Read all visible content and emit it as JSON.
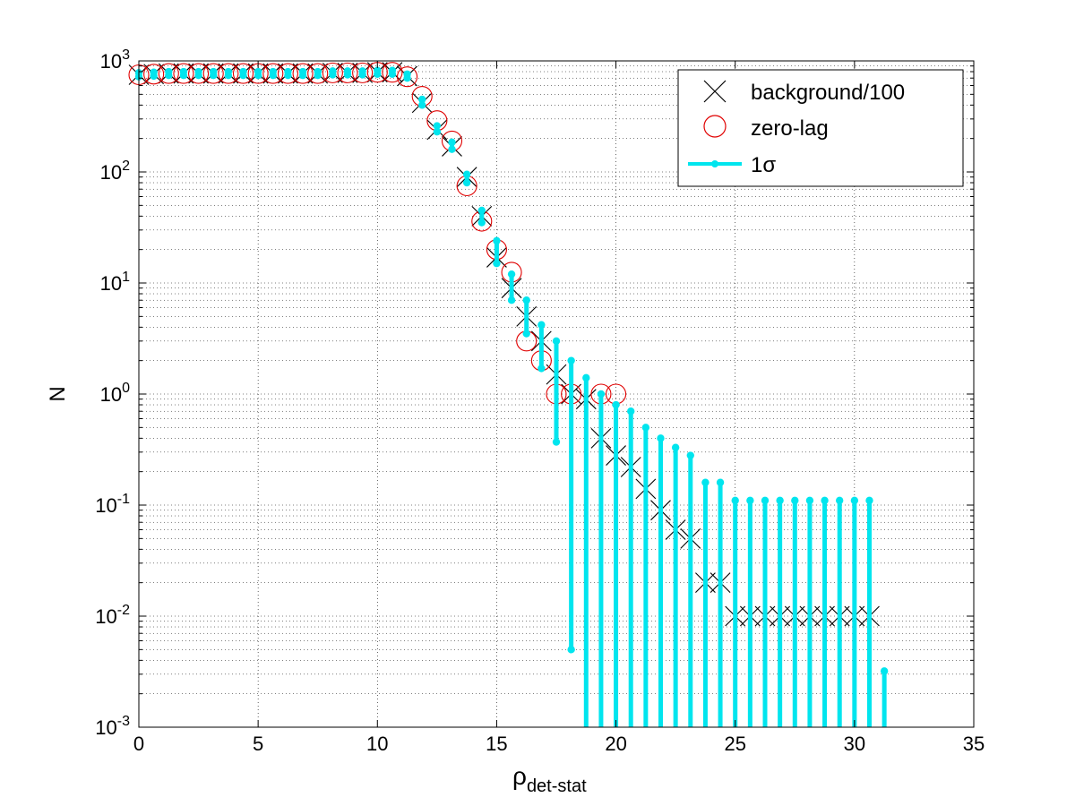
{
  "chart_data": {
    "type": "scatter",
    "xlabel": "ρ",
    "xlabel_sub": "det-stat",
    "ylabel": "N",
    "xlim": [
      0,
      35
    ],
    "ylim": [
      0.001,
      1000
    ],
    "yscale": "log",
    "grid": true,
    "x_ticks": [
      0,
      5,
      10,
      15,
      20,
      25,
      30,
      35
    ],
    "y_ticks": [
      {
        "value": 0.001,
        "base": "10",
        "exp": "-3"
      },
      {
        "value": 0.01,
        "base": "10",
        "exp": "-2"
      },
      {
        "value": 0.1,
        "base": "10",
        "exp": "-1"
      },
      {
        "value": 1,
        "base": "10",
        "exp": "0"
      },
      {
        "value": 10,
        "base": "10",
        "exp": "1"
      },
      {
        "value": 100,
        "base": "10",
        "exp": "2"
      },
      {
        "value": 1000,
        "base": "10",
        "exp": "3"
      }
    ],
    "legend_position": "top-right",
    "colors": {
      "background": "#000000",
      "zero_lag": "#e00000",
      "sigma": "#00e5ee"
    },
    "series": [
      {
        "name": "background/100",
        "marker": "x",
        "points": [
          [
            0,
            750
          ],
          [
            0.625,
            760
          ],
          [
            1.25,
            770
          ],
          [
            1.875,
            770
          ],
          [
            2.5,
            770
          ],
          [
            3.125,
            770
          ],
          [
            3.75,
            770
          ],
          [
            4.375,
            770
          ],
          [
            5,
            770
          ],
          [
            5.625,
            770
          ],
          [
            6.25,
            770
          ],
          [
            6.875,
            770
          ],
          [
            7.5,
            770
          ],
          [
            8.125,
            780
          ],
          [
            8.75,
            780
          ],
          [
            9.375,
            780
          ],
          [
            10,
            790
          ],
          [
            10.625,
            790
          ],
          [
            11.25,
            730
          ],
          [
            11.875,
            420
          ],
          [
            12.5,
            240
          ],
          [
            13.125,
            170
          ],
          [
            13.75,
            90
          ],
          [
            14.375,
            40
          ],
          [
            15,
            17
          ],
          [
            15.625,
            9
          ],
          [
            16.25,
            5
          ],
          [
            16.875,
            3
          ],
          [
            17.5,
            1.5
          ],
          [
            18.125,
            1
          ],
          [
            18.75,
            0.9
          ],
          [
            19.375,
            0.4
          ],
          [
            20,
            0.28
          ],
          [
            20.625,
            0.22
          ],
          [
            21.25,
            0.14
          ],
          [
            21.875,
            0.09
          ],
          [
            22.5,
            0.06
          ],
          [
            23.125,
            0.05
          ],
          [
            23.75,
            0.02
          ],
          [
            24.375,
            0.02
          ],
          [
            25,
            0.01
          ],
          [
            25.625,
            0.01
          ],
          [
            26.25,
            0.01
          ],
          [
            26.875,
            0.01
          ],
          [
            27.5,
            0.01
          ],
          [
            28.125,
            0.01
          ],
          [
            28.75,
            0.01
          ],
          [
            29.375,
            0.01
          ],
          [
            30,
            0.01
          ],
          [
            30.625,
            0.01
          ]
        ]
      },
      {
        "name": "zero-lag",
        "marker": "o",
        "points": [
          [
            0,
            750
          ],
          [
            0.625,
            760
          ],
          [
            1.25,
            770
          ],
          [
            1.875,
            770
          ],
          [
            2.5,
            770
          ],
          [
            3.125,
            770
          ],
          [
            3.75,
            770
          ],
          [
            4.375,
            770
          ],
          [
            5,
            770
          ],
          [
            5.625,
            770
          ],
          [
            6.25,
            770
          ],
          [
            6.875,
            770
          ],
          [
            7.5,
            770
          ],
          [
            8.125,
            780
          ],
          [
            8.75,
            780
          ],
          [
            9.375,
            780
          ],
          [
            10,
            790
          ],
          [
            10.625,
            790
          ],
          [
            11.25,
            720
          ],
          [
            11.875,
            480
          ],
          [
            12.5,
            290
          ],
          [
            13.125,
            190
          ],
          [
            13.75,
            75
          ],
          [
            14.375,
            36
          ],
          [
            15,
            20
          ],
          [
            15.625,
            12.5
          ],
          [
            16.25,
            3
          ],
          [
            16.875,
            2
          ],
          [
            17.5,
            1
          ],
          [
            18.125,
            1
          ],
          [
            19.375,
            1
          ],
          [
            20,
            1
          ]
        ]
      },
      {
        "name": "1σ",
        "marker": "errorbar",
        "bars": [
          [
            0,
            720,
            780
          ],
          [
            0.625,
            730,
            790
          ],
          [
            1.25,
            740,
            800
          ],
          [
            1.875,
            740,
            800
          ],
          [
            2.5,
            740,
            800
          ],
          [
            3.125,
            740,
            800
          ],
          [
            3.75,
            740,
            800
          ],
          [
            4.375,
            740,
            800
          ],
          [
            5,
            740,
            800
          ],
          [
            5.625,
            740,
            800
          ],
          [
            6.25,
            740,
            800
          ],
          [
            6.875,
            740,
            800
          ],
          [
            7.5,
            740,
            800
          ],
          [
            8.125,
            750,
            810
          ],
          [
            8.75,
            750,
            810
          ],
          [
            9.375,
            750,
            810
          ],
          [
            10,
            760,
            820
          ],
          [
            10.625,
            760,
            820
          ],
          [
            11.25,
            700,
            760
          ],
          [
            11.875,
            400,
            450
          ],
          [
            12.5,
            230,
            260
          ],
          [
            13.125,
            160,
            185
          ],
          [
            13.75,
            80,
            95
          ],
          [
            14.375,
            35,
            45
          ],
          [
            15,
            15,
            24
          ],
          [
            15.625,
            7,
            12
          ],
          [
            16.25,
            3.5,
            7
          ],
          [
            16.875,
            1.7,
            4.2
          ],
          [
            17.5,
            0.37,
            3
          ],
          [
            18.125,
            0.005,
            2
          ],
          [
            18.75,
            0.001,
            1.4
          ],
          [
            19.375,
            0.001,
            1
          ],
          [
            20,
            0.001,
            0.8
          ],
          [
            20.625,
            0.001,
            0.7
          ],
          [
            21.25,
            0.001,
            0.5
          ],
          [
            21.875,
            0.001,
            0.4
          ],
          [
            22.5,
            0.001,
            0.33
          ],
          [
            23.125,
            0.001,
            0.28
          ],
          [
            23.75,
            0.001,
            0.16
          ],
          [
            24.375,
            0.001,
            0.16
          ],
          [
            25,
            0.001,
            0.11
          ],
          [
            25.625,
            0.001,
            0.11
          ],
          [
            26.25,
            0.001,
            0.11
          ],
          [
            26.875,
            0.001,
            0.11
          ],
          [
            27.5,
            0.001,
            0.11
          ],
          [
            28.125,
            0.001,
            0.11
          ],
          [
            28.75,
            0.001,
            0.11
          ],
          [
            29.375,
            0.001,
            0.11
          ],
          [
            30,
            0.001,
            0.11
          ],
          [
            30.625,
            0.001,
            0.11
          ],
          [
            31.25,
            0.001,
            0.0032
          ]
        ]
      }
    ]
  }
}
